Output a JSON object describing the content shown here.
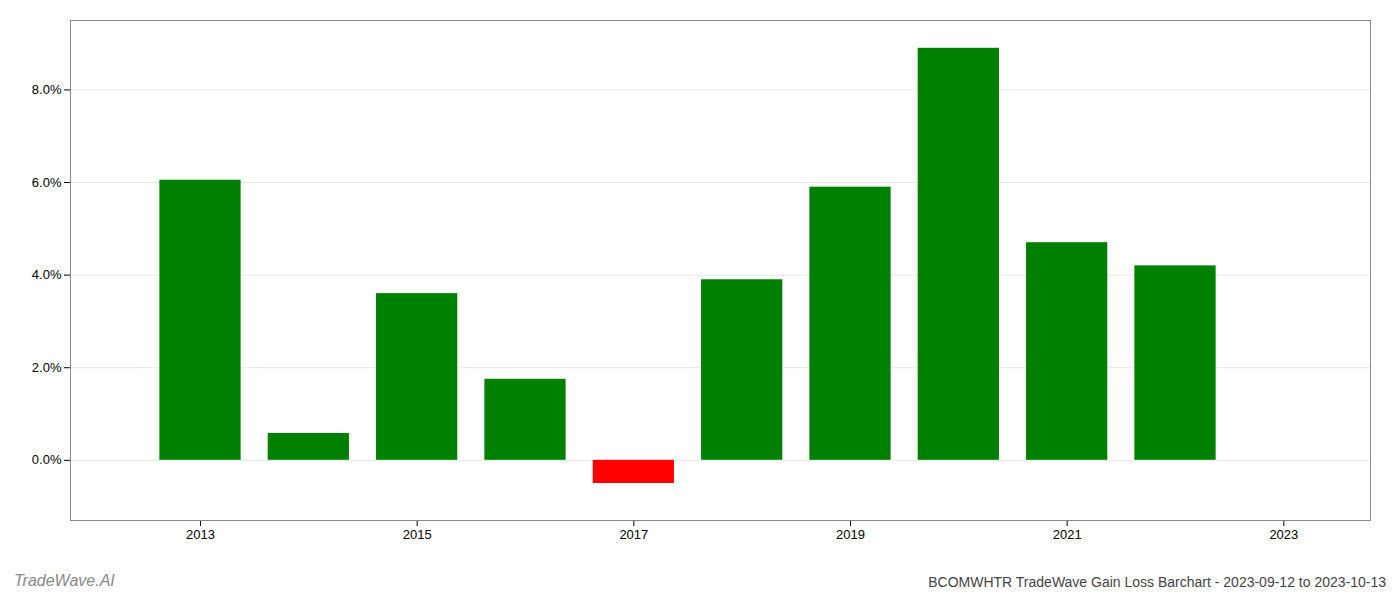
{
  "chart_data": {
    "type": "bar",
    "title": "BCOMWHTR TradeWave Gain Loss Barchart - 2023-09-12 to 2023-10-13",
    "annotations": [
      "TradeWave.AI"
    ],
    "x": [
      2013,
      2014,
      2015,
      2016,
      2017,
      2018,
      2019,
      2020,
      2021,
      2022
    ],
    "values": [
      0.0605,
      0.0058,
      0.036,
      0.0175,
      -0.005,
      0.039,
      0.059,
      0.089,
      0.047,
      0.042
    ],
    "colors": [
      "#008000",
      "#008000",
      "#008000",
      "#008000",
      "#ff0000",
      "#008000",
      "#008000",
      "#008000",
      "#008000",
      "#008000"
    ],
    "xlim": [
      2011.8,
      2023.8
    ],
    "xticks": [
      2013,
      2015,
      2017,
      2019,
      2021,
      2023
    ],
    "ylim": [
      -0.013,
      0.095
    ],
    "yticks": [
      {
        "value": 0.0,
        "label": "0.0%"
      },
      {
        "value": 0.02,
        "label": "2.0%"
      },
      {
        "value": 0.04,
        "label": "4.0%"
      },
      {
        "value": 0.06,
        "label": "6.0%"
      },
      {
        "value": 0.08,
        "label": "8.0%"
      }
    ],
    "grid": true
  }
}
